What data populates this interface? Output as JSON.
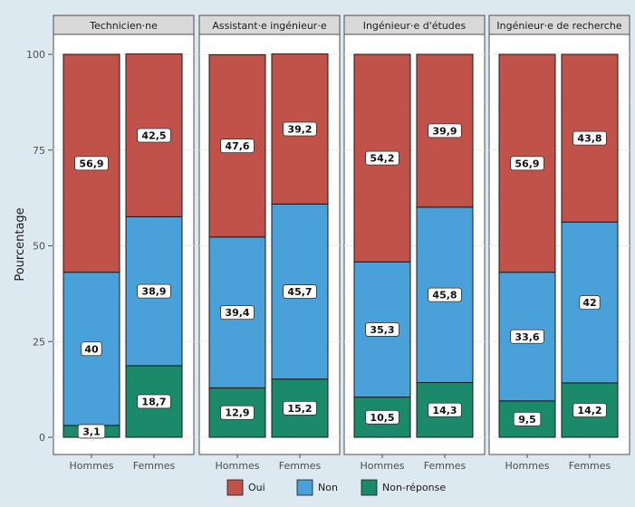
{
  "chart_data": {
    "type": "bar",
    "stacked": true,
    "facets": [
      {
        "title": "Technicien·ne",
        "categories": [
          "Hommes",
          "Femmes"
        ],
        "series": [
          {
            "name": "Non-réponse",
            "values": [
              3.1,
              18.7
            ],
            "labels": [
              "3,1",
              "18,7"
            ]
          },
          {
            "name": "Non",
            "values": [
              40,
              38.9
            ],
            "labels": [
              "40",
              "38,9"
            ]
          },
          {
            "name": "Oui",
            "values": [
              56.9,
              42.5
            ],
            "labels": [
              "56,9",
              "42,5"
            ]
          }
        ]
      },
      {
        "title": "Assistant·e ingénieur·e",
        "categories": [
          "Hommes",
          "Femmes"
        ],
        "series": [
          {
            "name": "Non-réponse",
            "values": [
              12.9,
              15.2
            ],
            "labels": [
              "12,9",
              "15,2"
            ]
          },
          {
            "name": "Non",
            "values": [
              39.4,
              45.7
            ],
            "labels": [
              "39,4",
              "45,7"
            ]
          },
          {
            "name": "Oui",
            "values": [
              47.6,
              39.2
            ],
            "labels": [
              "47,6",
              "39,2"
            ]
          }
        ]
      },
      {
        "title": "Ingénieur·e d'études",
        "categories": [
          "Hommes",
          "Femmes"
        ],
        "series": [
          {
            "name": "Non-réponse",
            "values": [
              10.5,
              14.3
            ],
            "labels": [
              "10,5",
              "14,3"
            ]
          },
          {
            "name": "Non",
            "values": [
              35.3,
              45.8
            ],
            "labels": [
              "35,3",
              "45,8"
            ]
          },
          {
            "name": "Oui",
            "values": [
              54.2,
              39.9
            ],
            "labels": [
              "54,2",
              "39,9"
            ]
          }
        ]
      },
      {
        "title": "Ingénieur·e de recherche",
        "categories": [
          "Hommes",
          "Femmes"
        ],
        "series": [
          {
            "name": "Non-réponse",
            "values": [
              9.5,
              14.2
            ],
            "labels": [
              "9,5",
              "14,2"
            ]
          },
          {
            "name": "Non",
            "values": [
              33.6,
              42
            ],
            "labels": [
              "33,6",
              "42"
            ]
          },
          {
            "name": "Oui",
            "values": [
              56.9,
              43.8
            ],
            "labels": [
              "56,9",
              "43,8"
            ]
          }
        ]
      }
    ],
    "ylabel": "Pourcentage",
    "xlabel": "",
    "ylim": [
      0,
      100
    ],
    "yticks": [
      0,
      25,
      50,
      75,
      100
    ],
    "grid": true,
    "legend": {
      "position": "bottom",
      "entries": [
        {
          "name": "Oui",
          "color": "#c0524a"
        },
        {
          "name": "Non",
          "color": "#4aa0d8"
        },
        {
          "name": "Non-réponse",
          "color": "#1b8a6a"
        }
      ]
    },
    "colors": {
      "Oui": "#c0524a",
      "Non": "#4aa0d8",
      "Non-réponse": "#1b8a6a"
    }
  }
}
